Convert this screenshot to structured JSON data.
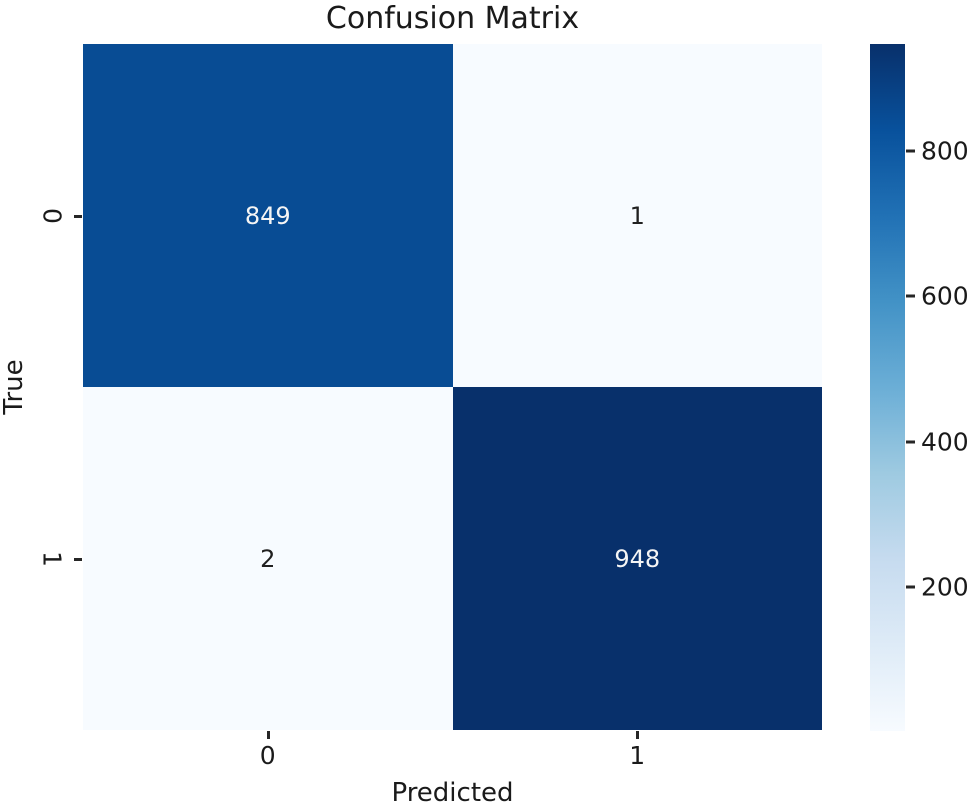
{
  "chart_data": {
    "type": "heatmap",
    "title": "Confusion Matrix",
    "xlabel": "Predicted",
    "ylabel": "True",
    "x_tick_labels": [
      "0",
      "1"
    ],
    "y_tick_labels": [
      "0",
      "1"
    ],
    "matrix": [
      [
        849,
        1
      ],
      [
        2,
        948
      ]
    ],
    "annotations": [
      [
        "849",
        "1"
      ],
      [
        "2",
        "948"
      ]
    ],
    "colormap": "Blues",
    "colorbar_ticks": [
      200,
      400,
      600,
      800
    ],
    "colorbar_position": "right",
    "grid": false
  },
  "colors": {
    "background": "#ffffff",
    "text": "#1a1a1a",
    "tick": "#262626",
    "annotation_on_dark": "#f5f5f5",
    "annotation_on_light": "#202020",
    "colormap_stops": [
      "#f7fbff",
      "#deebf7",
      "#c6dbef",
      "#9ecae1",
      "#6baed6",
      "#4292c6",
      "#2171b5",
      "#08519c",
      "#08306b"
    ]
  }
}
